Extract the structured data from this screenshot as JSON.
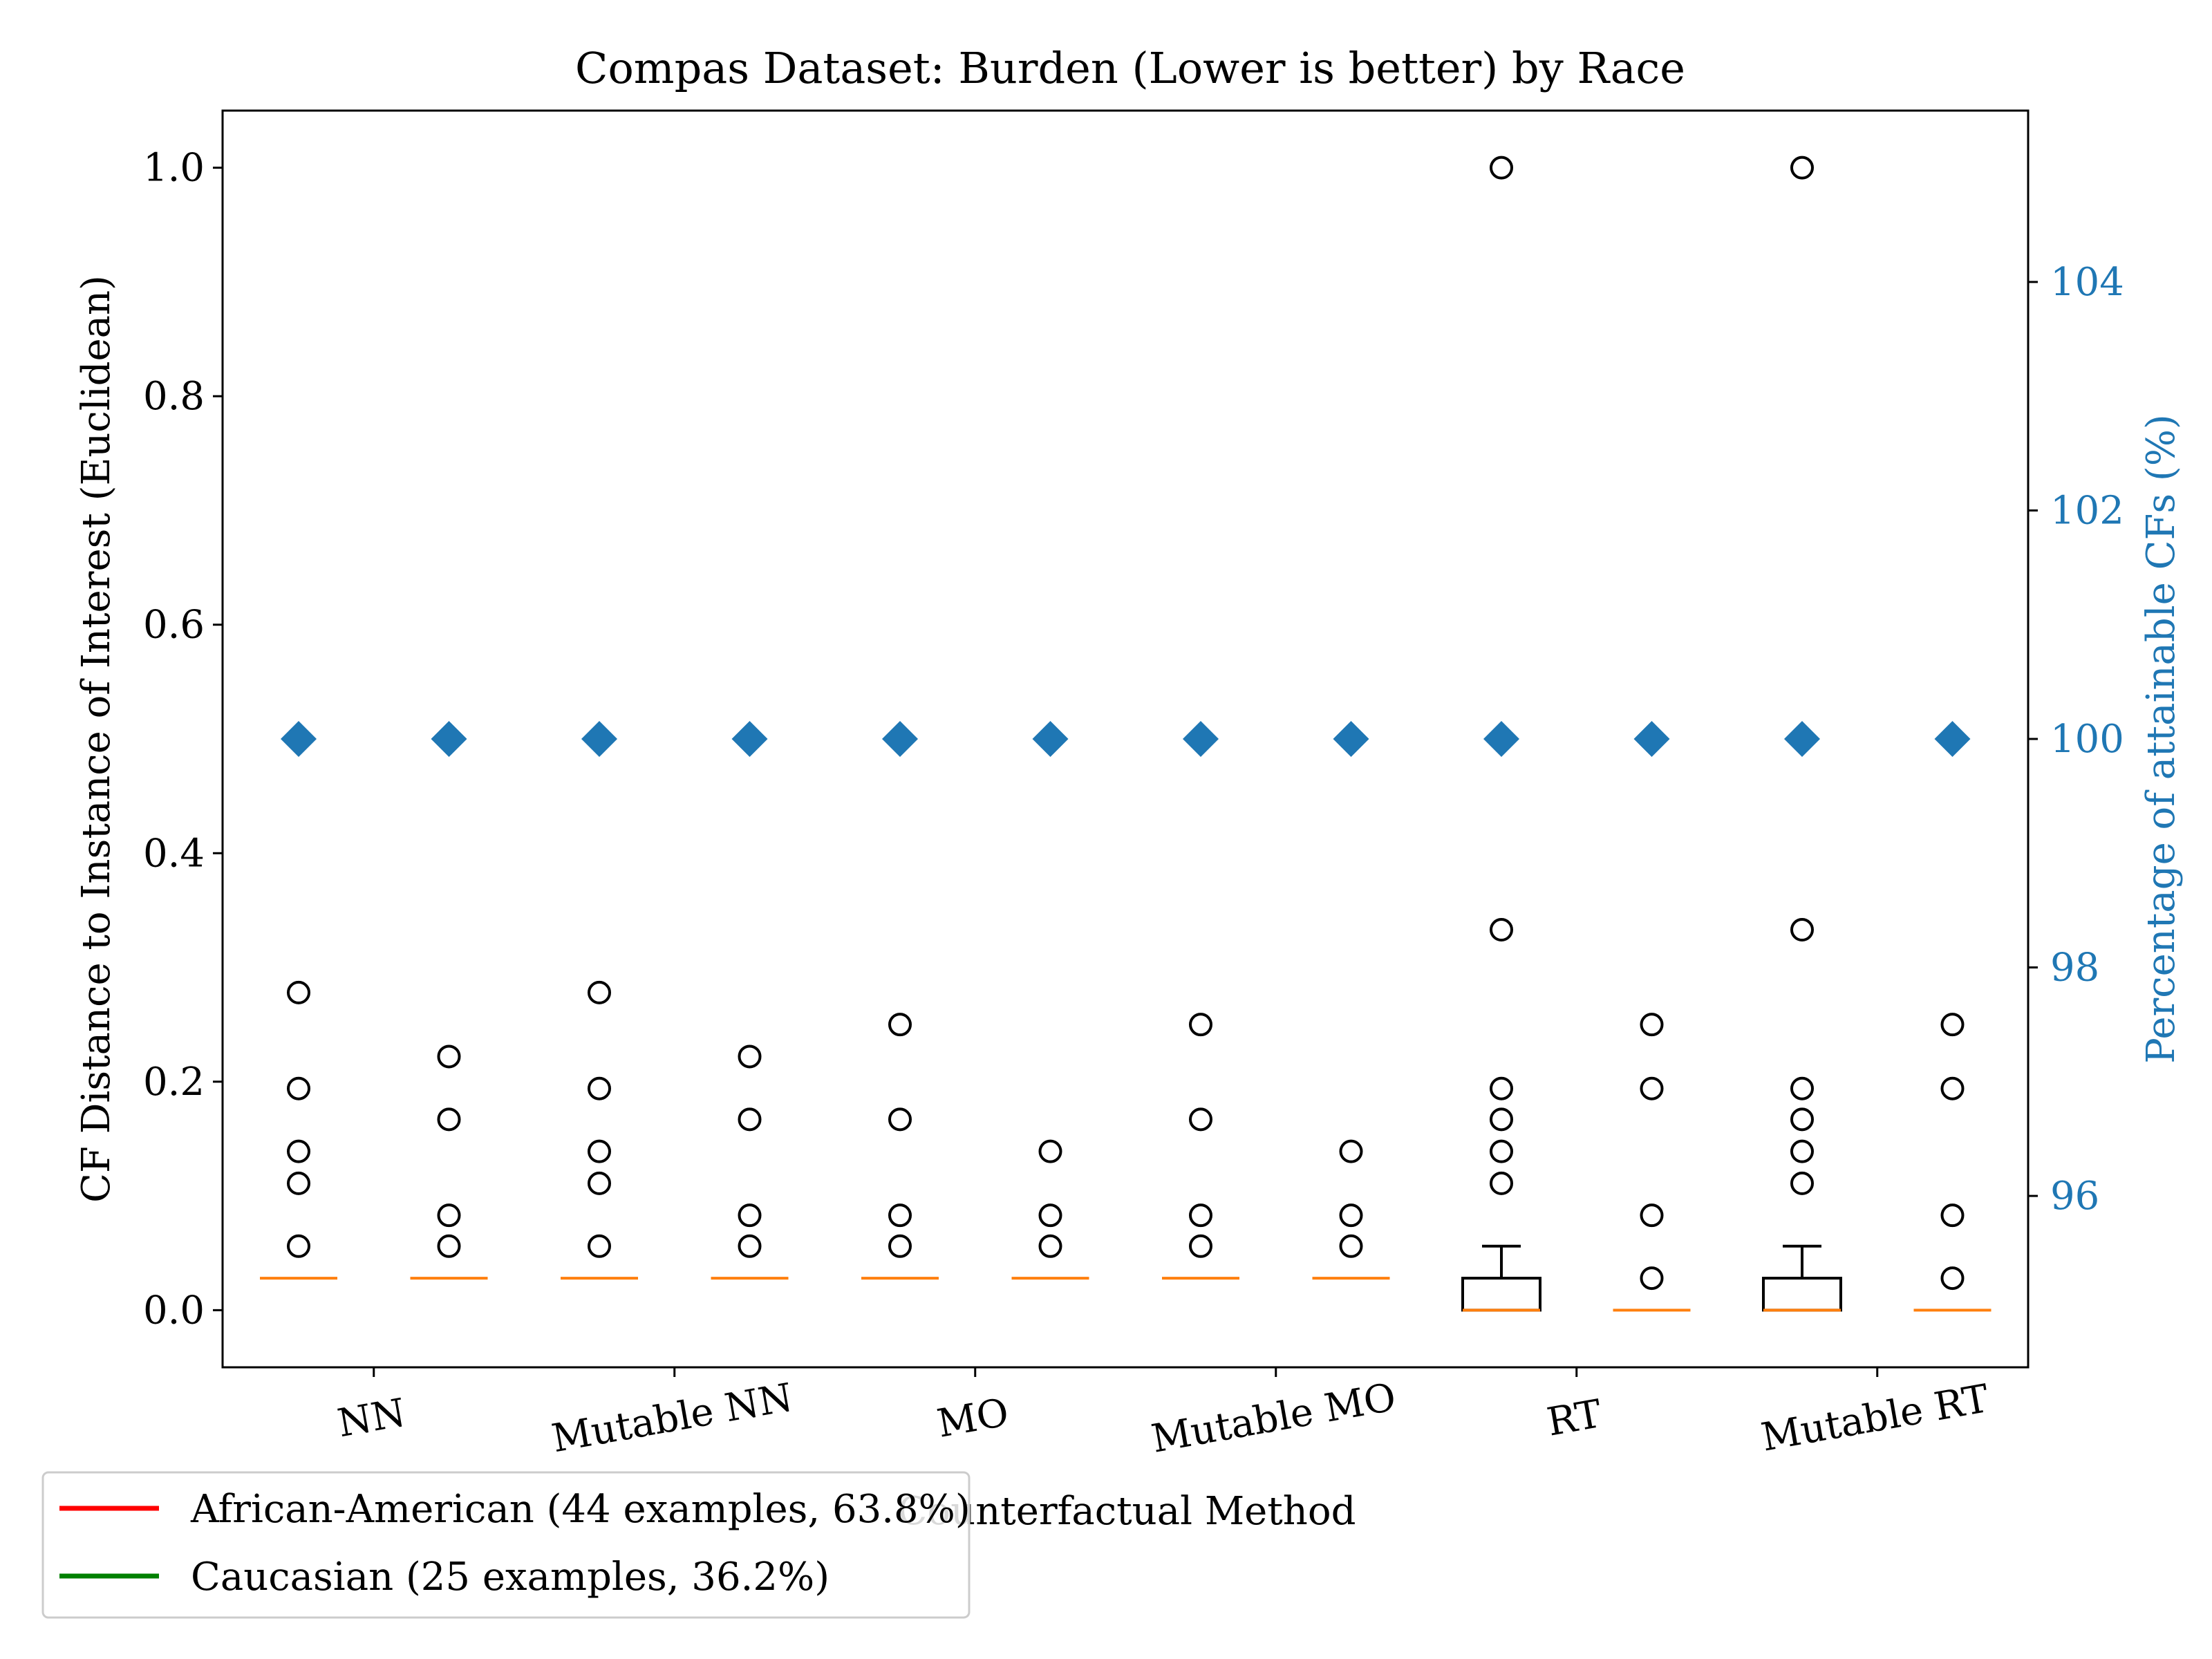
{
  "chart_data": {
    "type": "box",
    "title": "Compas Dataset: Burden (Lower is better) by Race",
    "xlabel": "Counterfactual Method",
    "ylabel": "CF Distance to Instance of Interest (Euclidean)",
    "ylabel_right": "Percentage of attainable CFs (%)",
    "ylim": [
      -0.05,
      1.05
    ],
    "yticks": [
      "0.0",
      "0.2",
      "0.4",
      "0.6",
      "0.8",
      "1.0"
    ],
    "ylim_right": [
      94.5,
      105.5
    ],
    "yticks_right": [
      "96",
      "98",
      "100",
      "102",
      "104"
    ],
    "categories": [
      "NN",
      "Mutable NN",
      "MO",
      "Mutable MO",
      "RT",
      "Mutable RT"
    ],
    "legend": {
      "placement": "lower-left",
      "entries": [
        {
          "label": "African-American (44 examples, 63.8%)",
          "color": "#ff0000"
        },
        {
          "label": "Caucasian (25 examples, 36.2%)",
          "color": "#008000"
        }
      ]
    },
    "colors": {
      "median": "#ff7f0e",
      "attainable": "#1f77b4",
      "box": "#000000"
    },
    "boxes": [
      {
        "method": "NN",
        "group": "African-American",
        "q1": 0.028,
        "median": 0.028,
        "q3": 0.028,
        "whisker_low": 0.028,
        "whisker_high": 0.028,
        "outliers": [
          0.056,
          0.111,
          0.139,
          0.194,
          0.278
        ],
        "attainable_pct": 100
      },
      {
        "method": "NN",
        "group": "Caucasian",
        "q1": 0.028,
        "median": 0.028,
        "q3": 0.028,
        "whisker_low": 0.028,
        "whisker_high": 0.028,
        "outliers": [
          0.056,
          0.083,
          0.167,
          0.222
        ],
        "attainable_pct": 100
      },
      {
        "method": "Mutable NN",
        "group": "African-American",
        "q1": 0.028,
        "median": 0.028,
        "q3": 0.028,
        "whisker_low": 0.028,
        "whisker_high": 0.028,
        "outliers": [
          0.056,
          0.111,
          0.139,
          0.194,
          0.278
        ],
        "attainable_pct": 100
      },
      {
        "method": "Mutable NN",
        "group": "Caucasian",
        "q1": 0.028,
        "median": 0.028,
        "q3": 0.028,
        "whisker_low": 0.028,
        "whisker_high": 0.028,
        "outliers": [
          0.056,
          0.083,
          0.167,
          0.222
        ],
        "attainable_pct": 100
      },
      {
        "method": "MO",
        "group": "African-American",
        "q1": 0.028,
        "median": 0.028,
        "q3": 0.028,
        "whisker_low": 0.028,
        "whisker_high": 0.028,
        "outliers": [
          0.056,
          0.083,
          0.167,
          0.25
        ],
        "attainable_pct": 100
      },
      {
        "method": "MO",
        "group": "Caucasian",
        "q1": 0.028,
        "median": 0.028,
        "q3": 0.028,
        "whisker_low": 0.028,
        "whisker_high": 0.028,
        "outliers": [
          0.056,
          0.083,
          0.139
        ],
        "attainable_pct": 100
      },
      {
        "method": "Mutable MO",
        "group": "African-American",
        "q1": 0.028,
        "median": 0.028,
        "q3": 0.028,
        "whisker_low": 0.028,
        "whisker_high": 0.028,
        "outliers": [
          0.056,
          0.083,
          0.167,
          0.25
        ],
        "attainable_pct": 100
      },
      {
        "method": "Mutable MO",
        "group": "Caucasian",
        "q1": 0.028,
        "median": 0.028,
        "q3": 0.028,
        "whisker_low": 0.028,
        "whisker_high": 0.028,
        "outliers": [
          0.056,
          0.083,
          0.139
        ],
        "attainable_pct": 100
      },
      {
        "method": "RT",
        "group": "African-American",
        "q1": 0.0,
        "median": 0.0,
        "q3": 0.028,
        "whisker_low": 0.0,
        "whisker_high": 0.056,
        "outliers": [
          0.111,
          0.139,
          0.167,
          0.194,
          0.333,
          1.0
        ],
        "attainable_pct": 100
      },
      {
        "method": "RT",
        "group": "Caucasian",
        "q1": 0.0,
        "median": 0.0,
        "q3": 0.0,
        "whisker_low": 0.0,
        "whisker_high": 0.0,
        "outliers": [
          0.028,
          0.083,
          0.194,
          0.25
        ],
        "attainable_pct": 100
      },
      {
        "method": "Mutable RT",
        "group": "African-American",
        "q1": 0.0,
        "median": 0.0,
        "q3": 0.028,
        "whisker_low": 0.0,
        "whisker_high": 0.056,
        "outliers": [
          0.111,
          0.139,
          0.167,
          0.194,
          0.333,
          1.0
        ],
        "attainable_pct": 100
      },
      {
        "method": "Mutable RT",
        "group": "Caucasian",
        "q1": 0.0,
        "median": 0.0,
        "q3": 0.0,
        "whisker_low": 0.0,
        "whisker_high": 0.0,
        "outliers": [
          0.028,
          0.083,
          0.194,
          0.25
        ],
        "attainable_pct": 100
      }
    ]
  }
}
